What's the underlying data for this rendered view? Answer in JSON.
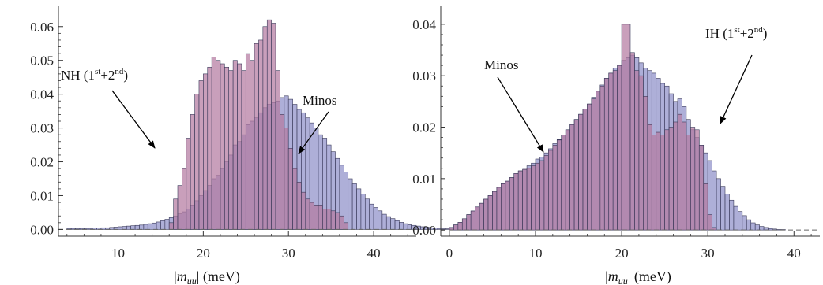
{
  "chart_data": [
    {
      "type": "bar",
      "subtype": "overlaid-histogram",
      "xlabel_text": "| (meV)",
      "xlabel_bar_open": "|",
      "xlabel_m": "m",
      "xlabel_sub": "uu",
      "xlabel_rest": "| (meV)",
      "xlim": [
        3,
        45
      ],
      "ylim": [
        -0.002,
        0.066
      ],
      "bin_start": 4,
      "bin_width": 0.5,
      "xticks": [
        "10",
        "20",
        "30",
        "40"
      ],
      "xtick_values": [
        10,
        20,
        30,
        40
      ],
      "yticks": [
        "0.00",
        "0.01",
        "0.02",
        "0.03",
        "0.04",
        "0.05",
        "0.06"
      ],
      "ytick_values": [
        0,
        0.01,
        0.02,
        0.03,
        0.04,
        0.05,
        0.06
      ],
      "series": [
        {
          "name": "Minos",
          "color": "#8f90c9",
          "values": [
            0.0003,
            0.0003,
            0.0003,
            0.0003,
            0.0003,
            0.0003,
            0.0004,
            0.0004,
            0.0005,
            0.0005,
            0.0006,
            0.0007,
            0.0008,
            0.0009,
            0.001,
            0.0011,
            0.0012,
            0.0013,
            0.0015,
            0.0017,
            0.0019,
            0.0022,
            0.0026,
            0.003,
            0.0035,
            0.004,
            0.0046,
            0.0052,
            0.006,
            0.007,
            0.0085,
            0.01,
            0.0115,
            0.013,
            0.015,
            0.016,
            0.018,
            0.02,
            0.022,
            0.025,
            0.026,
            0.028,
            0.031,
            0.032,
            0.033,
            0.0345,
            0.036,
            0.037,
            0.0375,
            0.038,
            0.039,
            0.0395,
            0.0385,
            0.037,
            0.0355,
            0.0345,
            0.033,
            0.0315,
            0.03,
            0.028,
            0.027,
            0.025,
            0.023,
            0.021,
            0.019,
            0.017,
            0.015,
            0.0135,
            0.012,
            0.0105,
            0.009,
            0.0075,
            0.0065,
            0.0055,
            0.0045,
            0.0038,
            0.0032,
            0.0026,
            0.0021,
            0.0017,
            0.0014,
            0.0012,
            0.001,
            0.0008,
            0.0007,
            0.0005,
            0.0004,
            0.0003,
            0.0002,
            0.0002
          ]
        },
        {
          "name": "NH (1st+2nd)",
          "color": "#b47aa1",
          "values": [
            0,
            0,
            0,
            0,
            0,
            0,
            0,
            0,
            0,
            0,
            0,
            0,
            0,
            0,
            0,
            0,
            0,
            0,
            0,
            0,
            0,
            0,
            0,
            0,
            0.002,
            0.009,
            0.013,
            0.018,
            0.027,
            0.034,
            0.04,
            0.044,
            0.046,
            0.048,
            0.051,
            0.05,
            0.049,
            0.048,
            0.047,
            0.05,
            0.049,
            0.047,
            0.052,
            0.05,
            0.055,
            0.056,
            0.06,
            0.062,
            0.061,
            0.047,
            0.034,
            0.03,
            0.024,
            0.018,
            0.014,
            0.011,
            0.009,
            0.008,
            0.007,
            0.007,
            0.006,
            0.006,
            0.0055,
            0.005,
            0.004,
            0.002,
            0,
            0,
            0,
            0,
            0,
            0,
            0,
            0,
            0,
            0,
            0,
            0,
            0,
            0,
            0,
            0,
            0,
            0,
            0,
            0,
            0,
            0,
            0,
            0
          ]
        }
      ],
      "annotations": [
        {
          "label": "NH (1st+2nd)",
          "text_main": "NH (1",
          "sup1": "st",
          "mid": "+2",
          "sup2": "nd",
          "end": ")"
        },
        {
          "label": "Minos",
          "text": "Minos"
        }
      ]
    },
    {
      "type": "bar",
      "subtype": "overlaid-histogram",
      "xlabel_bar_open": "|",
      "xlabel_m": "m",
      "xlabel_sub": "uu",
      "xlabel_rest": "| (meV)",
      "xlim": [
        -1,
        43
      ],
      "ylim": [
        -0.0012,
        0.0435
      ],
      "bin_start": 0,
      "bin_width": 0.5,
      "xticks": [
        "0",
        "10",
        "20",
        "30",
        "40"
      ],
      "xtick_values": [
        0,
        10,
        20,
        30,
        40
      ],
      "yticks": [
        "0.00",
        "0.01",
        "0.02",
        "0.03",
        "0.04"
      ],
      "ytick_values": [
        0,
        0.01,
        0.02,
        0.03,
        0.04
      ],
      "series": [
        {
          "name": "Minos",
          "color": "#8f90c9",
          "values": [
            0.0005,
            0.001,
            0.0015,
            0.0022,
            0.003,
            0.0037,
            0.0045,
            0.0052,
            0.006,
            0.0067,
            0.0075,
            0.0083,
            0.009,
            0.0095,
            0.0102,
            0.011,
            0.0115,
            0.0118,
            0.0125,
            0.013,
            0.0138,
            0.0142,
            0.015,
            0.0158,
            0.0168,
            0.0176,
            0.0185,
            0.0195,
            0.0205,
            0.0215,
            0.0225,
            0.0235,
            0.0245,
            0.0258,
            0.027,
            0.0282,
            0.0295,
            0.0305,
            0.0315,
            0.032,
            0.033,
            0.0335,
            0.034,
            0.0335,
            0.0325,
            0.0315,
            0.031,
            0.0305,
            0.0295,
            0.0285,
            0.028,
            0.0265,
            0.025,
            0.0255,
            0.024,
            0.0215,
            0.0195,
            0.018,
            0.0165,
            0.015,
            0.0135,
            0.0115,
            0.01,
            0.0085,
            0.007,
            0.0058,
            0.0046,
            0.0036,
            0.0028,
            0.002,
            0.0014,
            0.001,
            0.0007,
            0.0005,
            0.0003,
            0.0002,
            0.0001,
            0.0001,
            0,
            0
          ]
        },
        {
          "name": "IH (1st+2nd)",
          "color": "#b47aa1",
          "values": [
            0.0005,
            0.001,
            0.0015,
            0.0022,
            0.003,
            0.0037,
            0.0045,
            0.0052,
            0.006,
            0.0067,
            0.0075,
            0.0083,
            0.009,
            0.0095,
            0.0102,
            0.011,
            0.0115,
            0.0118,
            0.012,
            0.0125,
            0.013,
            0.0135,
            0.0145,
            0.0155,
            0.0165,
            0.0175,
            0.0185,
            0.0195,
            0.0205,
            0.0215,
            0.0225,
            0.0235,
            0.0245,
            0.0255,
            0.027,
            0.028,
            0.0295,
            0.0305,
            0.031,
            0.032,
            0.04,
            0.04,
            0.0345,
            0.031,
            0.03,
            0.026,
            0.0205,
            0.0185,
            0.019,
            0.0185,
            0.0195,
            0.02,
            0.021,
            0.0225,
            0.021,
            0.0185,
            0.02,
            0.0195,
            0.0165,
            0.009,
            0.003,
            0.0005,
            0,
            0,
            0,
            0,
            0,
            0,
            0,
            0,
            0,
            0,
            0,
            0,
            0,
            0,
            0,
            0,
            0,
            0
          ]
        }
      ],
      "annotations": [
        {
          "label": "Minos",
          "text": "Minos"
        },
        {
          "label": "IH (1st+2nd)",
          "text_main": "IH (1",
          "sup1": "st",
          "mid": "+2",
          "sup2": "nd",
          "end": ")"
        }
      ]
    }
  ]
}
